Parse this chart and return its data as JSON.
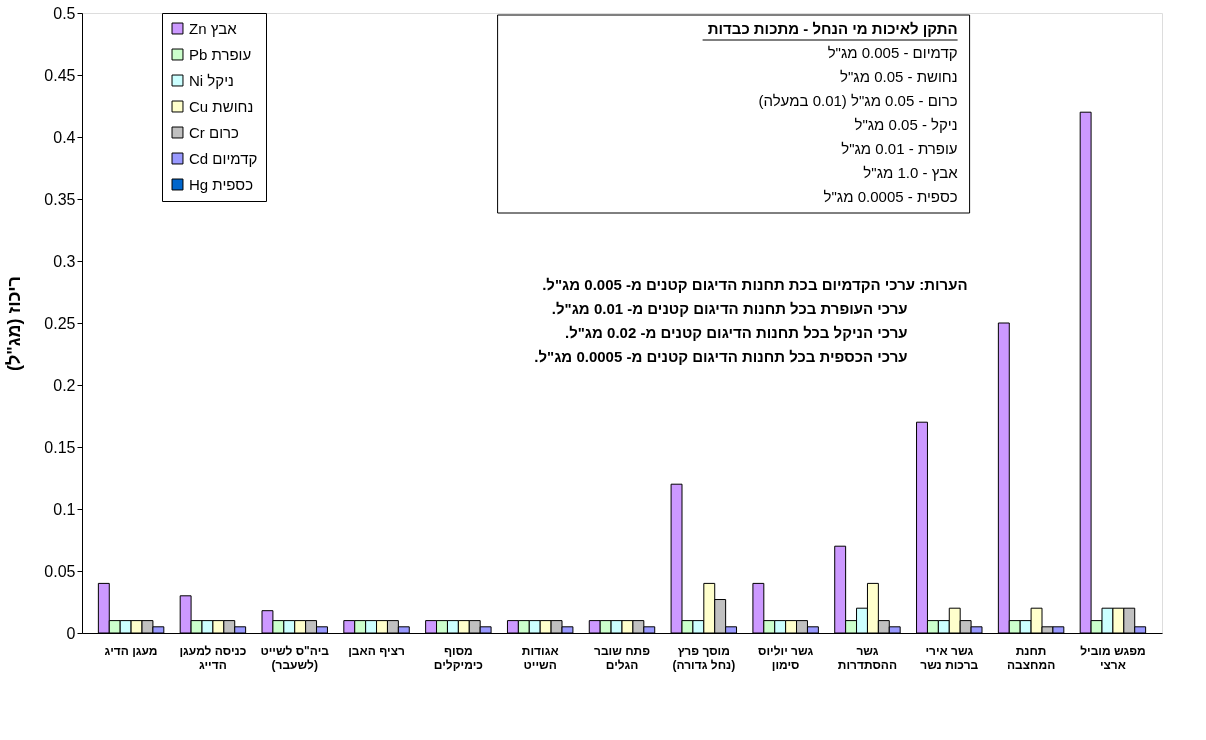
{
  "chart_data": {
    "type": "bar",
    "ylabel": "ריכוז (מג\"ל)",
    "categories": [
      "מעגן הדיג",
      "כניסה למעגן הדייג",
      "ביה\"ס לשייט (לשעבר)",
      "רציף האבן",
      "מסוף כימיקלים",
      "אגודות השייט",
      "פתח שובר הגלים",
      "מוסך פרץ (נחל גדורה)",
      "גשר יוליוס סימון",
      "גשר ההסתדרות",
      "גשר אירי ברכות נשר",
      "תחנת המחצבה",
      "מפגש מוביל ארצי"
    ],
    "series": [
      {
        "name": "אבץ Zn",
        "color": "#cc99ff",
        "values": [
          0.04,
          0.03,
          0.018,
          0.01,
          0.01,
          0.01,
          0.01,
          0.12,
          0.04,
          0.07,
          0.17,
          0.25,
          0.42
        ]
      },
      {
        "name": "עופרת Pb",
        "color": "#ccffcc",
        "values": [
          0.01,
          0.01,
          0.01,
          0.01,
          0.01,
          0.01,
          0.01,
          0.01,
          0.01,
          0.01,
          0.01,
          0.01,
          0.01
        ]
      },
      {
        "name": "ניקל Ni",
        "color": "#ccffff",
        "values": [
          0.01,
          0.01,
          0.01,
          0.01,
          0.01,
          0.01,
          0.01,
          0.01,
          0.01,
          0.02,
          0.01,
          0.01,
          0.02
        ]
      },
      {
        "name": "נחושת Cu",
        "color": "#ffffcc",
        "values": [
          0.01,
          0.01,
          0.01,
          0.01,
          0.01,
          0.01,
          0.01,
          0.04,
          0.01,
          0.04,
          0.02,
          0.02,
          0.02
        ]
      },
      {
        "name": "כרום Cr",
        "color": "#c0c0c0",
        "values": [
          0.01,
          0.01,
          0.01,
          0.01,
          0.01,
          0.01,
          0.01,
          0.027,
          0.01,
          0.01,
          0.01,
          0.005,
          0.02
        ]
      },
      {
        "name": "קדמיום Cd",
        "color": "#9999ff",
        "values": [
          0.005,
          0.005,
          0.005,
          0.005,
          0.005,
          0.005,
          0.005,
          0.005,
          0.005,
          0.005,
          0.005,
          0.005,
          0.005
        ]
      },
      {
        "name": "כספית Hg",
        "color": "#0066cc",
        "values": [
          null,
          null,
          null,
          null,
          null,
          null,
          null,
          null,
          null,
          null,
          null,
          null,
          null
        ]
      }
    ],
    "ylim": [
      0,
      0.5
    ],
    "yticks": [
      0,
      0.05,
      0.1,
      0.15,
      0.2,
      0.25,
      0.3,
      0.35,
      0.4,
      0.45,
      0.5
    ],
    "grid": false,
    "legend": "top left",
    "annotations": [
      "התקן  לאיכות מי הנחל - מתכות כבדות",
      "קדמיום  -  0.005  מג\"ל",
      "נחושת  -  0.05  מג\"ל",
      "כרום  -  0.05  מג\"ל  (0.01 במעלה)",
      "ניקל  -  0.05  מג\"ל",
      "עופרת  -  0.01  מג\"ל",
      "אבץ  -  1.0  מג\"ל",
      "כספית  -  0.0005  מג\"ל",
      "הערות:  ערכי הקדמיום בכת תחנות הדיגום  קטנים מ- 0.005 מג\"ל.",
      "ערכי העופרת בכל תחנות הדיגום קטנים מ- 0.01 מג\"ל.",
      "ערכי הניקל בכל תחנות הדיגום  קטנים מ- 0.02 מג\"ל.",
      "ערכי הכספית בכל תחנות הדיגום קטנים מ- 0.0005 מג\"ל."
    ]
  }
}
